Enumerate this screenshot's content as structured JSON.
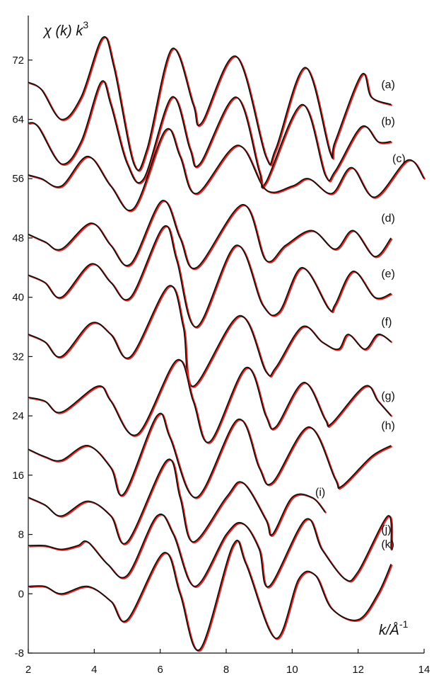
{
  "chart_data": {
    "type": "line",
    "ylabel": "χ (k) k",
    "ylabel_exp": "3",
    "xlabel": "k/Å",
    "xlabel_exp": "-1",
    "xlim": [
      2,
      14
    ],
    "ylim": [
      -8,
      78
    ],
    "xticks": [
      2,
      4,
      6,
      8,
      10,
      12,
      14
    ],
    "yticks": [
      -8,
      0,
      8,
      16,
      24,
      32,
      40,
      48,
      56,
      64,
      72
    ],
    "grid": false,
    "colors": {
      "experiment": "#111111",
      "fit": "#e8251f"
    },
    "series": [
      {
        "label": "(a)",
        "k_end": 13.0,
        "points": [
          [
            2.0,
            69
          ],
          [
            2.4,
            68
          ],
          [
            3.0,
            64
          ],
          [
            3.6,
            67
          ],
          [
            4.25,
            75
          ],
          [
            4.6,
            71
          ],
          [
            5.2,
            58
          ],
          [
            5.6,
            60
          ],
          [
            6.35,
            73.5
          ],
          [
            7.0,
            66
          ],
          [
            7.25,
            63.5
          ],
          [
            8.3,
            72.5
          ],
          [
            9.2,
            59
          ],
          [
            9.5,
            60
          ],
          [
            10.4,
            71
          ],
          [
            11.15,
            59.5
          ],
          [
            11.3,
            61
          ],
          [
            12.1,
            70
          ],
          [
            12.4,
            67
          ],
          [
            13.0,
            66
          ]
        ]
      },
      {
        "label": "(b)",
        "k_end": 13.0,
        "points": [
          [
            2.0,
            63.5
          ],
          [
            2.3,
            63
          ],
          [
            3.0,
            58
          ],
          [
            3.6,
            61
          ],
          [
            4.2,
            69
          ],
          [
            4.5,
            66
          ],
          [
            5.0,
            58
          ],
          [
            5.5,
            56
          ],
          [
            6.35,
            67
          ],
          [
            6.9,
            60
          ],
          [
            7.2,
            58
          ],
          [
            8.3,
            67
          ],
          [
            9.0,
            57
          ],
          [
            9.2,
            55.5
          ],
          [
            10.3,
            66
          ],
          [
            11.0,
            56.5
          ],
          [
            11.3,
            57
          ],
          [
            12.1,
            63
          ],
          [
            12.6,
            61
          ],
          [
            13.0,
            61
          ]
        ]
      },
      {
        "label": "(c)",
        "k_end": 14.0,
        "points": [
          [
            2.0,
            56.5
          ],
          [
            2.4,
            56
          ],
          [
            3.0,
            55
          ],
          [
            3.8,
            59
          ],
          [
            4.5,
            55
          ],
          [
            5.2,
            52
          ],
          [
            6.15,
            62.5
          ],
          [
            6.6,
            59
          ],
          [
            7.1,
            54
          ],
          [
            8.35,
            60.5
          ],
          [
            9.2,
            54.5
          ],
          [
            10.0,
            55
          ],
          [
            10.5,
            56
          ],
          [
            11.2,
            54
          ],
          [
            11.8,
            57.5
          ],
          [
            12.5,
            53.5
          ],
          [
            13.5,
            58.5
          ],
          [
            14.0,
            56
          ]
        ]
      },
      {
        "label": "(d)",
        "k_end": 13.0,
        "points": [
          [
            2.0,
            48.5
          ],
          [
            2.5,
            47.5
          ],
          [
            3.0,
            46.5
          ],
          [
            3.9,
            50
          ],
          [
            4.5,
            47
          ],
          [
            5.1,
            44.5
          ],
          [
            6.05,
            53
          ],
          [
            6.6,
            48
          ],
          [
            7.1,
            44
          ],
          [
            8.5,
            52.5
          ],
          [
            9.2,
            45
          ],
          [
            9.8,
            47
          ],
          [
            10.6,
            49
          ],
          [
            11.3,
            46.5
          ],
          [
            11.85,
            49
          ],
          [
            12.5,
            45.5
          ],
          [
            13.0,
            48
          ]
        ]
      },
      {
        "label": "(e)",
        "k_end": 13.0,
        "points": [
          [
            2.0,
            43
          ],
          [
            2.5,
            42
          ],
          [
            3.0,
            40
          ],
          [
            3.9,
            44.5
          ],
          [
            4.5,
            42
          ],
          [
            5.1,
            40
          ],
          [
            6.1,
            49.5
          ],
          [
            6.5,
            45
          ],
          [
            7.1,
            36
          ],
          [
            8.3,
            47
          ],
          [
            9.1,
            39
          ],
          [
            9.6,
            38
          ],
          [
            10.3,
            44
          ],
          [
            11.1,
            38.5
          ],
          [
            11.3,
            39
          ],
          [
            11.85,
            43.5
          ],
          [
            12.5,
            40
          ],
          [
            13.0,
            40.5
          ]
        ]
      },
      {
        "label": "(f)",
        "k_end": 13.0,
        "points": [
          [
            2.0,
            35
          ],
          [
            2.5,
            34
          ],
          [
            3.0,
            32
          ],
          [
            3.9,
            36.5
          ],
          [
            4.5,
            35
          ],
          [
            5.1,
            32
          ],
          [
            6.25,
            41.5
          ],
          [
            6.7,
            36
          ],
          [
            7.0,
            28
          ],
          [
            8.4,
            37.5
          ],
          [
            9.2,
            30
          ],
          [
            9.5,
            30.5
          ],
          [
            10.3,
            36
          ],
          [
            10.9,
            34
          ],
          [
            11.4,
            33
          ],
          [
            11.7,
            35
          ],
          [
            12.2,
            33
          ],
          [
            12.6,
            35
          ],
          [
            13.0,
            34
          ]
        ]
      },
      {
        "label": "(g)",
        "k_end": 13.0,
        "points": [
          [
            2.0,
            26.5
          ],
          [
            2.5,
            26
          ],
          [
            3.0,
            24.5
          ],
          [
            4.1,
            28
          ],
          [
            4.5,
            26
          ],
          [
            5.3,
            21.5
          ],
          [
            6.5,
            31.5
          ],
          [
            7.0,
            26
          ],
          [
            7.5,
            20.5
          ],
          [
            8.6,
            30.5
          ],
          [
            9.2,
            24
          ],
          [
            9.5,
            22.5
          ],
          [
            10.35,
            28.5
          ],
          [
            11.0,
            23.5
          ],
          [
            11.2,
            23
          ],
          [
            12.2,
            28
          ],
          [
            12.6,
            26
          ],
          [
            13.0,
            24
          ]
        ]
      },
      {
        "label": "(h)",
        "k_end": 13.0,
        "points": [
          [
            2.0,
            19.5
          ],
          [
            2.5,
            18.5
          ],
          [
            3.0,
            18
          ],
          [
            3.8,
            20
          ],
          [
            4.5,
            17
          ],
          [
            4.9,
            13.5
          ],
          [
            5.9,
            24
          ],
          [
            6.3,
            21
          ],
          [
            7.1,
            13
          ],
          [
            8.35,
            23.5
          ],
          [
            9.0,
            17
          ],
          [
            9.4,
            15
          ],
          [
            10.5,
            22.5
          ],
          [
            11.3,
            15.5
          ],
          [
            11.5,
            14.5
          ],
          [
            12.4,
            18.5
          ],
          [
            13.0,
            20
          ]
        ]
      },
      {
        "label": "(i)",
        "k_end": 11.0,
        "points": [
          [
            2.0,
            13
          ],
          [
            2.5,
            12
          ],
          [
            3.0,
            10.5
          ],
          [
            3.8,
            12.5
          ],
          [
            4.5,
            10.5
          ],
          [
            5.0,
            7
          ],
          [
            6.2,
            18
          ],
          [
            6.6,
            13
          ],
          [
            7.0,
            7
          ],
          [
            8.0,
            13
          ],
          [
            8.5,
            15
          ],
          [
            9.2,
            10
          ],
          [
            9.4,
            8
          ],
          [
            10.0,
            13
          ],
          [
            10.6,
            13
          ],
          [
            11.0,
            11
          ]
        ]
      },
      {
        "label": "(j)",
        "k_end": 13.0,
        "points": [
          [
            2.0,
            6.5
          ],
          [
            2.5,
            6.5
          ],
          [
            3.0,
            6
          ],
          [
            3.5,
            6.5
          ],
          [
            3.8,
            7
          ],
          [
            4.4,
            4
          ],
          [
            5.0,
            2.5
          ],
          [
            5.9,
            10.5
          ],
          [
            6.4,
            8
          ],
          [
            7.05,
            1
          ],
          [
            8.0,
            8
          ],
          [
            8.5,
            9.5
          ],
          [
            9.0,
            6
          ],
          [
            9.3,
            1
          ],
          [
            10.4,
            10
          ],
          [
            10.9,
            6
          ],
          [
            11.6,
            2
          ],
          [
            12.0,
            3
          ],
          [
            12.9,
            10.5
          ],
          [
            13.0,
            6
          ]
        ]
      },
      {
        "label": "(k)",
        "k_end": 13.0,
        "points": [
          [
            2.0,
            1
          ],
          [
            2.5,
            1
          ],
          [
            3.0,
            0
          ],
          [
            3.8,
            1
          ],
          [
            4.5,
            -1
          ],
          [
            5.0,
            -3.5
          ],
          [
            6.1,
            5.5
          ],
          [
            6.6,
            0
          ],
          [
            7.2,
            -7.5
          ],
          [
            8.2,
            6.5
          ],
          [
            8.6,
            4
          ],
          [
            9.5,
            -6
          ],
          [
            10.2,
            2
          ],
          [
            10.7,
            2.5
          ],
          [
            11.2,
            -2
          ],
          [
            12.0,
            -3.5
          ],
          [
            12.6,
            0
          ],
          [
            13.0,
            4
          ]
        ]
      }
    ]
  }
}
